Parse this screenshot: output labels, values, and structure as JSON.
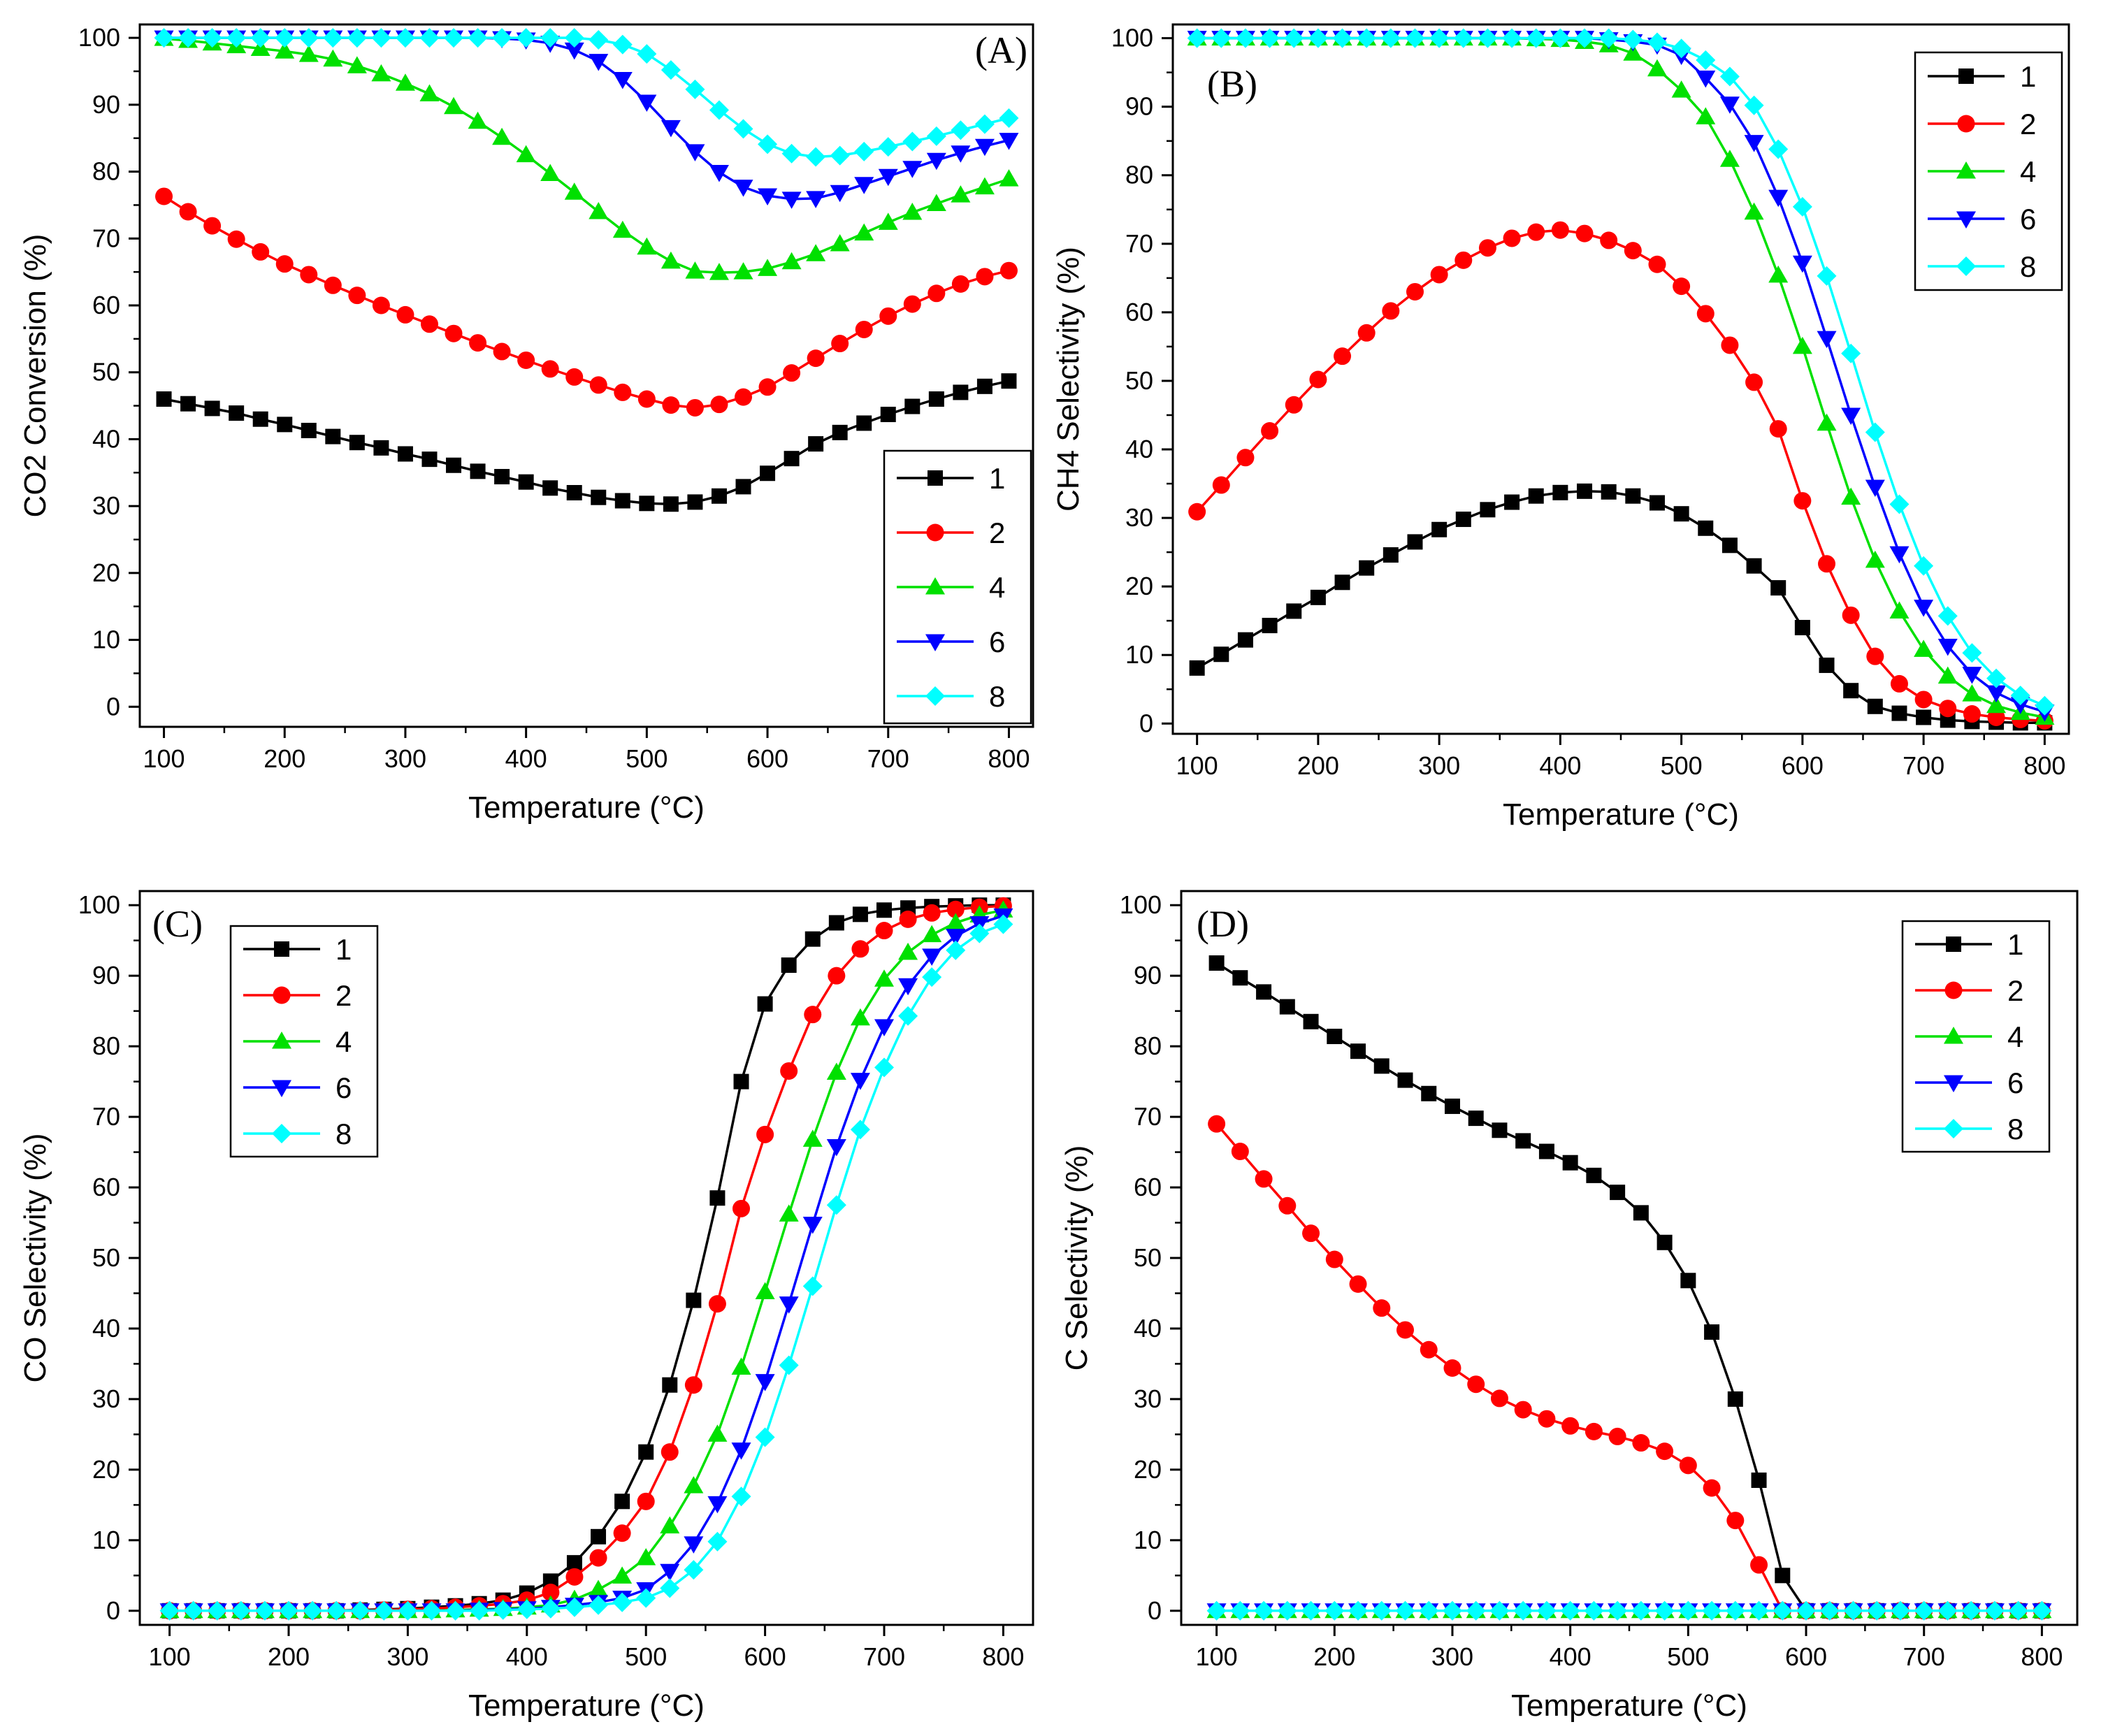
{
  "chart_data": [
    {
      "type": "line",
      "panel": "(A)",
      "xlabel": "Temperature (°C)",
      "ylabel": "CO2 Conversion (%)",
      "xlim": [
        80,
        820
      ],
      "ylim": [
        -3,
        102
      ],
      "xticks": [
        100,
        200,
        300,
        400,
        500,
        600,
        700,
        800
      ],
      "yticks": [
        0,
        10,
        20,
        30,
        40,
        50,
        60,
        70,
        80,
        90,
        100
      ],
      "legend_position": "bottom-right",
      "x": [
        100,
        120,
        140,
        160,
        180,
        200,
        220,
        240,
        260,
        280,
        300,
        320,
        340,
        360,
        380,
        400,
        420,
        440,
        460,
        480,
        500,
        520,
        540,
        560,
        580,
        600,
        620,
        640,
        660,
        680,
        700,
        720,
        740,
        760,
        780,
        800
      ],
      "series": [
        {
          "name": "1",
          "color": "#000000",
          "marker": "square",
          "values": [
            46,
            45.3,
            44.6,
            43.9,
            43.0,
            42.2,
            41.3,
            40.4,
            39.5,
            38.7,
            37.8,
            37.0,
            36.1,
            35.2,
            34.4,
            33.6,
            32.7,
            32.0,
            31.3,
            30.8,
            30.4,
            30.3,
            30.6,
            31.5,
            32.9,
            34.9,
            37.1,
            39.3,
            41.0,
            42.4,
            43.7,
            44.9,
            46.0,
            47.0,
            47.9,
            48.7
          ]
        },
        {
          "name": "2",
          "color": "#ff0000",
          "marker": "circle",
          "values": [
            76.3,
            74.0,
            71.9,
            69.9,
            68.0,
            66.2,
            64.6,
            63.0,
            61.5,
            60.0,
            58.6,
            57.2,
            55.8,
            54.4,
            53.1,
            51.8,
            50.5,
            49.3,
            48.1,
            47.0,
            46.0,
            45.1,
            44.7,
            45.2,
            46.3,
            47.8,
            49.9,
            52.1,
            54.3,
            56.4,
            58.4,
            60.2,
            61.8,
            63.2,
            64.3,
            65.2
          ]
        },
        {
          "name": "4",
          "color": "#00e000",
          "marker": "triangle-up",
          "values": [
            99.9,
            99.6,
            99.2,
            98.8,
            98.4,
            98.0,
            97.5,
            96.8,
            95.8,
            94.6,
            93.2,
            91.6,
            89.7,
            87.5,
            85.1,
            82.5,
            79.7,
            76.9,
            74.0,
            71.2,
            68.7,
            66.6,
            65.1,
            64.9,
            65.0,
            65.5,
            66.5,
            67.7,
            69.2,
            70.8,
            72.4,
            73.9,
            75.2,
            76.5,
            77.7,
            78.9
          ]
        },
        {
          "name": "6",
          "color": "#0000ff",
          "marker": "triangle-down",
          "values": [
            100,
            100,
            100,
            100,
            100,
            100,
            100,
            100,
            100,
            100,
            100,
            100,
            100,
            100,
            99.9,
            99.7,
            99.2,
            98.2,
            96.5,
            93.8,
            90.4,
            86.6,
            83.0,
            79.9,
            77.7,
            76.4,
            75.9,
            76.0,
            76.9,
            78.1,
            79.3,
            80.5,
            81.7,
            82.8,
            83.8,
            84.7
          ]
        },
        {
          "name": "8",
          "color": "#00ffff",
          "marker": "diamond",
          "values": [
            100,
            100,
            100,
            100,
            100,
            100,
            100,
            100,
            100,
            100,
            100,
            100,
            100,
            100,
            100,
            100,
            100,
            100,
            99.7,
            99.0,
            97.6,
            95.2,
            92.3,
            89.2,
            86.4,
            84.1,
            82.7,
            82.2,
            82.4,
            83.0,
            83.7,
            84.5,
            85.3,
            86.2,
            87.1,
            88.0
          ]
        }
      ]
    },
    {
      "type": "line",
      "panel": "(B)",
      "xlabel": "Temperature (°C)",
      "ylabel": "CH4 Selectivity (%)",
      "xlim": [
        80,
        820
      ],
      "ylim": [
        -1.5,
        102
      ],
      "xticks": [
        100,
        200,
        300,
        400,
        500,
        600,
        700,
        800
      ],
      "yticks": [
        0,
        10,
        20,
        30,
        40,
        50,
        60,
        70,
        80,
        90,
        100
      ],
      "legend_position": "top-right",
      "x": [
        100,
        120,
        140,
        160,
        180,
        200,
        220,
        240,
        260,
        280,
        300,
        320,
        340,
        360,
        380,
        400,
        420,
        440,
        460,
        480,
        500,
        520,
        540,
        560,
        580,
        600,
        620,
        640,
        660,
        680,
        700,
        720,
        740,
        760,
        780,
        800
      ],
      "series": [
        {
          "name": "1",
          "color": "#000000",
          "marker": "square",
          "values": [
            8.1,
            10.1,
            12.2,
            14.3,
            16.4,
            18.4,
            20.6,
            22.7,
            24.6,
            26.5,
            28.3,
            29.8,
            31.2,
            32.3,
            33.2,
            33.7,
            33.9,
            33.8,
            33.2,
            32.2,
            30.6,
            28.5,
            26.0,
            23.0,
            19.8,
            14.0,
            8.5,
            4.8,
            2.5,
            1.5,
            0.9,
            0.5,
            0.3,
            0.2,
            0.1,
            0.1
          ]
        },
        {
          "name": "2",
          "color": "#ff0000",
          "marker": "circle",
          "values": [
            30.9,
            34.8,
            38.8,
            42.7,
            46.5,
            50.2,
            53.6,
            57.0,
            60.2,
            63.0,
            65.5,
            67.6,
            69.4,
            70.8,
            71.7,
            72.0,
            71.5,
            70.5,
            69.0,
            67.0,
            63.8,
            59.8,
            55.2,
            49.8,
            43.0,
            32.5,
            23.3,
            15.8,
            9.8,
            5.8,
            3.5,
            2.2,
            1.4,
            0.9,
            0.6,
            0.4
          ]
        },
        {
          "name": "4",
          "color": "#00e000",
          "marker": "triangle-up",
          "values": [
            100,
            100,
            100,
            100,
            100,
            100,
            100,
            100,
            100,
            100,
            100,
            100,
            100,
            100,
            99.9,
            99.8,
            99.5,
            99.0,
            97.8,
            95.5,
            92.4,
            88.5,
            82.3,
            74.6,
            65.4,
            55.0,
            43.8,
            33.0,
            23.8,
            16.4,
            10.8,
            6.9,
            4.3,
            2.6,
            1.6,
            0.9
          ]
        },
        {
          "name": "6",
          "color": "#0000ff",
          "marker": "triangle-down",
          "values": [
            100,
            100,
            100,
            100,
            100,
            100,
            100,
            100,
            100,
            100,
            100,
            100,
            100,
            100,
            100,
            100,
            100,
            99.8,
            99.5,
            99.0,
            97.5,
            94.2,
            90.4,
            84.8,
            76.8,
            67.2,
            56.2,
            45.0,
            34.5,
            24.8,
            17.0,
            11.3,
            7.2,
            4.5,
            2.8,
            1.7
          ]
        },
        {
          "name": "8",
          "color": "#00ffff",
          "marker": "diamond",
          "values": [
            100,
            100,
            100,
            100,
            100,
            100,
            100,
            100,
            100,
            100,
            100,
            100,
            100,
            100,
            100,
            100,
            100,
            100,
            99.8,
            99.4,
            98.5,
            96.8,
            94.4,
            90.2,
            83.8,
            75.4,
            65.3,
            54.0,
            42.5,
            32.0,
            23.0,
            15.7,
            10.3,
            6.6,
            4.1,
            2.6
          ]
        }
      ]
    },
    {
      "type": "line",
      "panel": "(C)",
      "xlabel": "Temperature (°C)",
      "ylabel": "CO Selectivity (%)",
      "xlim": [
        75,
        825
      ],
      "ylim": [
        -2,
        102
      ],
      "xticks": [
        100,
        200,
        300,
        400,
        500,
        600,
        700,
        800
      ],
      "yticks": [
        0,
        10,
        20,
        30,
        40,
        50,
        60,
        70,
        80,
        90,
        100
      ],
      "legend_position": "top-left",
      "x": [
        100,
        120,
        140,
        160,
        180,
        200,
        220,
        240,
        260,
        280,
        300,
        320,
        340,
        360,
        380,
        400,
        420,
        440,
        460,
        480,
        500,
        520,
        540,
        560,
        580,
        600,
        620,
        640,
        660,
        680,
        700,
        720,
        740,
        760,
        780,
        800
      ],
      "series": [
        {
          "name": "1",
          "color": "#000000",
          "marker": "square",
          "values": [
            0,
            0,
            0,
            0,
            0,
            0,
            0,
            0,
            0.1,
            0.2,
            0.3,
            0.5,
            0.7,
            1.0,
            1.5,
            2.5,
            4.2,
            6.8,
            10.5,
            15.5,
            22.5,
            32.0,
            44.0,
            58.5,
            75.0,
            86.0,
            91.5,
            95.2,
            97.5,
            98.7,
            99.3,
            99.6,
            99.8,
            99.9,
            100,
            100
          ]
        },
        {
          "name": "2",
          "color": "#ff0000",
          "marker": "circle",
          "values": [
            0,
            0,
            0,
            0,
            0,
            0,
            0,
            0,
            0,
            0.1,
            0.2,
            0.3,
            0.5,
            0.7,
            1.0,
            1.5,
            2.6,
            4.8,
            7.5,
            11.0,
            15.5,
            22.5,
            32.0,
            43.5,
            57.0,
            67.5,
            76.5,
            84.5,
            90.0,
            93.8,
            96.4,
            98.0,
            98.9,
            99.4,
            99.7,
            99.9
          ]
        },
        {
          "name": "4",
          "color": "#00e000",
          "marker": "triangle-up",
          "values": [
            0,
            0,
            0,
            0,
            0,
            0,
            0,
            0,
            0,
            0,
            0,
            0,
            0.1,
            0.2,
            0.3,
            0.5,
            0.8,
            1.6,
            3.0,
            4.9,
            7.5,
            12.0,
            17.7,
            25.0,
            34.5,
            45.2,
            56.2,
            66.8,
            76.3,
            84.0,
            89.5,
            93.3,
            95.8,
            97.5,
            98.6,
            99.3
          ]
        },
        {
          "name": "6",
          "color": "#0000ff",
          "marker": "triangle-down",
          "values": [
            0,
            0,
            0,
            0,
            0,
            0,
            0,
            0,
            0,
            0,
            0,
            0,
            0,
            0.1,
            0.2,
            0.3,
            0.5,
            0.8,
            1.2,
            1.8,
            3.0,
            5.6,
            9.5,
            15.2,
            22.8,
            32.5,
            43.5,
            54.8,
            65.8,
            75.2,
            82.8,
            88.6,
            92.8,
            95.6,
            97.4,
            98.5
          ]
        },
        {
          "name": "8",
          "color": "#00ffff",
          "marker": "diamond",
          "values": [
            0,
            0,
            0,
            0,
            0,
            0,
            0,
            0,
            0,
            0,
            0,
            0,
            0,
            0,
            0.1,
            0.2,
            0.3,
            0.5,
            0.8,
            1.2,
            1.8,
            3.2,
            5.8,
            9.8,
            16.2,
            24.6,
            34.8,
            46.0,
            57.5,
            68.2,
            77.0,
            84.3,
            89.8,
            93.6,
            96.0,
            97.3
          ]
        }
      ]
    },
    {
      "type": "line",
      "panel": "(D)",
      "xlabel": "Temperature (°C)",
      "ylabel": "C Selectivity (%)",
      "xlim": [
        70,
        830
      ],
      "ylim": [
        -2,
        102
      ],
      "xticks": [
        100,
        200,
        300,
        400,
        500,
        600,
        700,
        800
      ],
      "yticks": [
        0,
        10,
        20,
        30,
        40,
        50,
        60,
        70,
        80,
        90,
        100
      ],
      "legend_position": "top-right",
      "x": [
        100,
        120,
        140,
        160,
        180,
        200,
        220,
        240,
        260,
        280,
        300,
        320,
        340,
        360,
        380,
        400,
        420,
        440,
        460,
        480,
        500,
        520,
        540,
        560,
        580,
        600,
        620,
        640,
        660,
        680,
        700,
        720,
        740,
        760,
        780,
        800
      ],
      "series": [
        {
          "name": "1",
          "color": "#000000",
          "marker": "square",
          "values": [
            91.8,
            89.7,
            87.7,
            85.6,
            83.5,
            81.4,
            79.3,
            77.2,
            75.2,
            73.3,
            71.5,
            69.8,
            68.1,
            66.6,
            65.1,
            63.5,
            61.7,
            59.3,
            56.4,
            52.2,
            46.8,
            39.5,
            30.0,
            18.5,
            5.0,
            0,
            0,
            0,
            0,
            0,
            0,
            0,
            0,
            0,
            0,
            0
          ]
        },
        {
          "name": "2",
          "color": "#ff0000",
          "marker": "circle",
          "values": [
            69.0,
            65.1,
            61.2,
            57.4,
            53.5,
            49.8,
            46.3,
            42.9,
            39.8,
            37.0,
            34.4,
            32.1,
            30.1,
            28.5,
            27.2,
            26.2,
            25.4,
            24.7,
            23.8,
            22.6,
            20.6,
            17.4,
            12.8,
            6.5,
            0,
            0,
            0,
            0,
            0,
            0,
            0,
            0,
            0,
            0,
            0,
            0
          ]
        },
        {
          "name": "4",
          "color": "#00e000",
          "marker": "triangle-up",
          "values": [
            0,
            0,
            0,
            0,
            0,
            0,
            0,
            0,
            0,
            0,
            0,
            0,
            0,
            0,
            0,
            0,
            0,
            0,
            0,
            0,
            0,
            0,
            0,
            0,
            0,
            0,
            0,
            0,
            0,
            0,
            0,
            0,
            0,
            0,
            0,
            0
          ]
        },
        {
          "name": "6",
          "color": "#0000ff",
          "marker": "triangle-down",
          "values": [
            0,
            0,
            0,
            0,
            0,
            0,
            0,
            0,
            0,
            0,
            0,
            0,
            0,
            0,
            0,
            0,
            0,
            0,
            0,
            0,
            0,
            0,
            0,
            0,
            0,
            0,
            0,
            0,
            0,
            0,
            0,
            0,
            0,
            0,
            0,
            0
          ]
        },
        {
          "name": "8",
          "color": "#00ffff",
          "marker": "diamond",
          "values": [
            0,
            0,
            0,
            0,
            0,
            0,
            0,
            0,
            0,
            0,
            0,
            0,
            0,
            0,
            0,
            0,
            0,
            0,
            0,
            0,
            0,
            0,
            0,
            0,
            0,
            0,
            0,
            0,
            0,
            0,
            0,
            0,
            0,
            0,
            0,
            0
          ]
        }
      ]
    }
  ]
}
